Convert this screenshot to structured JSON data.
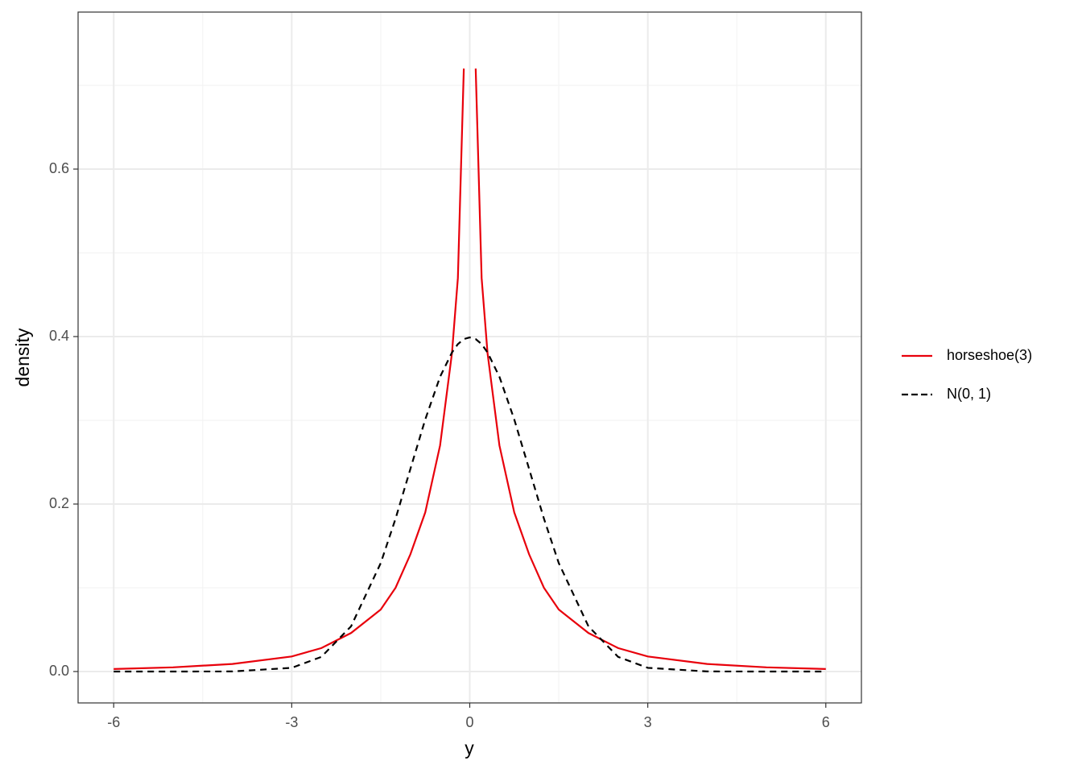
{
  "chart_data": {
    "type": "line",
    "x_label": "y",
    "y_label": "density",
    "x": [
      -6,
      -5,
      -4,
      -3,
      -2.5,
      -2,
      -1.5,
      -1.25,
      -1,
      -0.75,
      -0.5,
      -0.3,
      -0.2,
      -0.1,
      0,
      0.1,
      0.2,
      0.3,
      0.5,
      0.75,
      1,
      1.25,
      1.5,
      2,
      2.5,
      3,
      4,
      5,
      6
    ],
    "series": [
      {
        "name": "horseshoe(3)",
        "color": "#e8000b",
        "linestyle": "solid",
        "values": [
          0.003,
          0.005,
          0.009,
          0.018,
          0.028,
          0.046,
          0.074,
          0.1,
          0.14,
          0.19,
          0.27,
          0.38,
          0.47,
          0.72,
          null,
          0.72,
          0.47,
          0.38,
          0.27,
          0.19,
          0.14,
          0.1,
          0.074,
          0.046,
          0.028,
          0.018,
          0.009,
          0.005,
          0.003
        ]
      },
      {
        "name": "N(0, 1)",
        "color": "#000000",
        "linestyle": "dashed",
        "values": [
          0,
          0,
          0.0001,
          0.0044,
          0.0175,
          0.054,
          0.1295,
          0.1826,
          0.242,
          0.301,
          0.352,
          0.381,
          0.391,
          0.397,
          0.399,
          0.397,
          0.391,
          0.381,
          0.352,
          0.301,
          0.242,
          0.1826,
          0.1295,
          0.054,
          0.0175,
          0.0044,
          0.0001,
          0,
          0
        ]
      }
    ],
    "xlim": [
      -6.6,
      6.6
    ],
    "ylim": [
      -0.0375,
      0.7875
    ],
    "xticks": [
      -6,
      -3,
      0,
      3,
      6
    ],
    "yticks": [
      {
        "value": 0,
        "label": "0.0"
      },
      0.2,
      0.4,
      0.6
    ],
    "grid": true,
    "legend_position": "right"
  }
}
